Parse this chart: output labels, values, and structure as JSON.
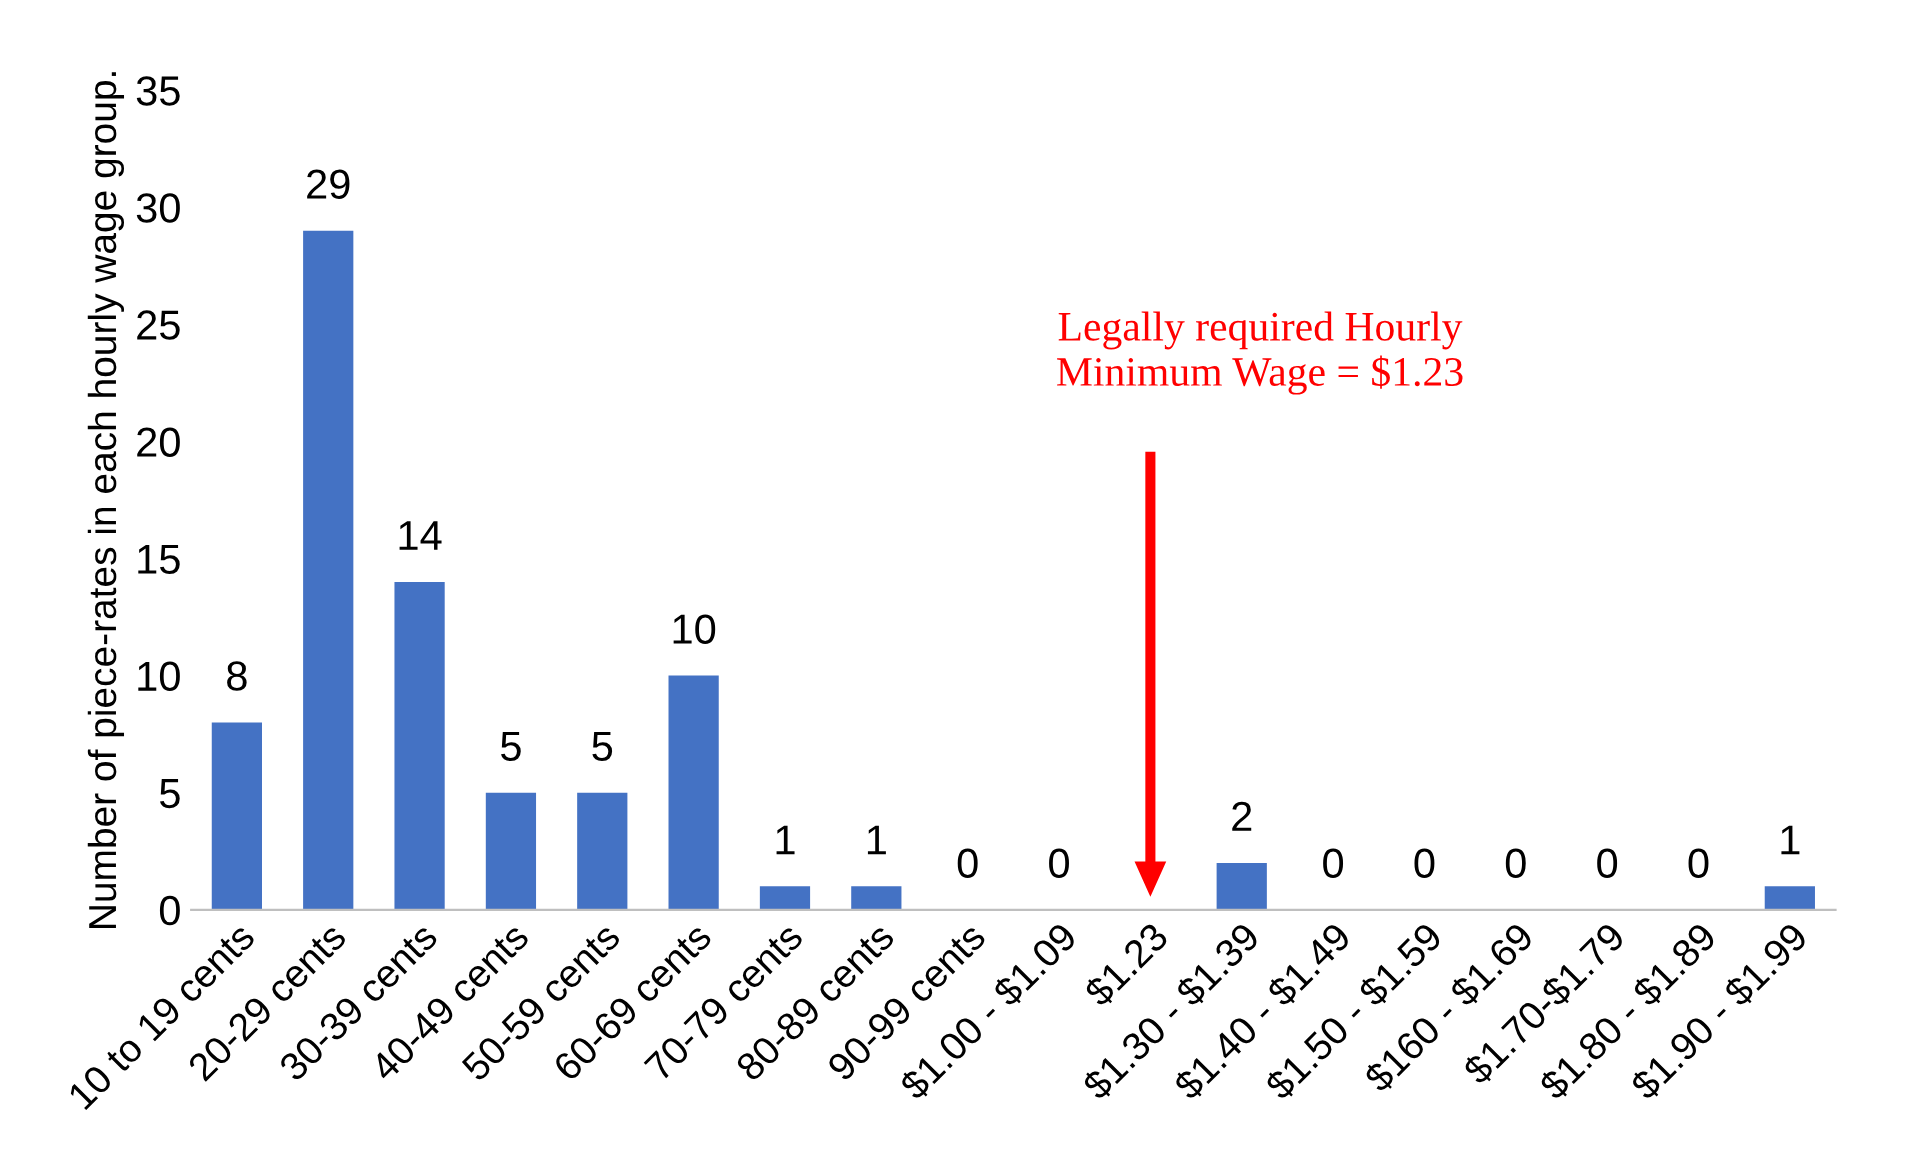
{
  "chart_data": {
    "type": "bar",
    "ylabel": "Number of piece-rates in each hourly wage group.",
    "categories": [
      "10 to 19 cents",
      "20-29 cents",
      "30-39 cents",
      "40-49 cents",
      "50-59 cents",
      "60-69 cents",
      "70-79 cents",
      "80-89 cents",
      "90-99 cents",
      "$1.00 - $1.09",
      "$1.23",
      "$1.30 - $1.39",
      "$1.40 - $1.49",
      "$1.50 - $1.59",
      "$160 - $1.69",
      "$1.70-$1.79",
      "$1.80 - $1.89",
      "$1.90 - $1.99"
    ],
    "values": [
      8,
      29,
      14,
      5,
      5,
      10,
      1,
      1,
      0,
      0,
      null,
      2,
      0,
      0,
      0,
      0,
      0,
      1
    ],
    "value_labels": [
      "8",
      "29",
      "14",
      "5",
      "5",
      "10",
      "1",
      "1",
      "0",
      "0",
      null,
      "2",
      "0",
      "0",
      "0",
      "0",
      "0",
      "1"
    ],
    "color": "#4472c4",
    "ylim": [
      0,
      35
    ],
    "yticks": [
      0,
      5,
      10,
      15,
      20,
      25,
      30,
      35
    ],
    "grid": false,
    "legend": false,
    "annotations": [
      "Legally required Hourly\nMinimum Wage = $1.23"
    ]
  }
}
